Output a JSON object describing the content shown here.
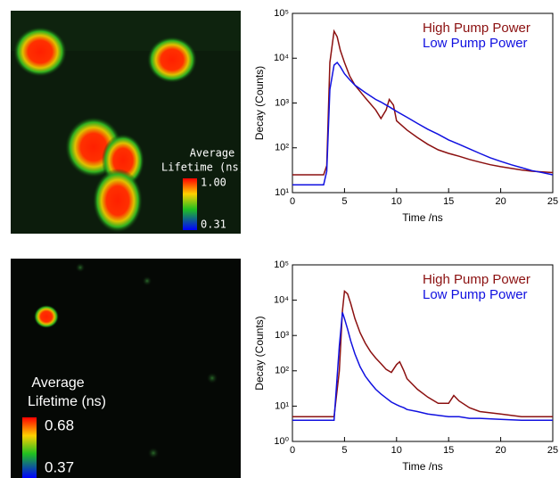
{
  "images": [
    {
      "colorbar_title": [
        "Average",
        "Lifetime (ns)"
      ],
      "colorbar_max": "1.00",
      "colorbar_min": "0.31"
    },
    {
      "colorbar_title": [
        "Average",
        "Lifetime (ns)"
      ],
      "colorbar_max": "0.68",
      "colorbar_min": "0.37"
    }
  ],
  "chart_data": [
    {
      "type": "line",
      "x_label": "Time /ns",
      "y_label": "Decay (Counts)",
      "log_y": true,
      "legend": "upper right",
      "x": [
        0,
        1,
        2,
        3,
        3.3,
        3.6,
        4,
        4.3,
        4.6,
        5,
        5.5,
        6,
        7,
        8,
        8.5,
        9,
        9.3,
        9.7,
        10,
        11,
        12,
        13,
        14,
        15,
        16,
        17,
        18,
        19,
        20,
        21,
        22,
        23,
        24,
        25
      ],
      "series": [
        {
          "name": "High Pump Power",
          "color": "#8b1010",
          "values": [
            25,
            25,
            25,
            25,
            40,
            8000,
            40000,
            30000,
            15000,
            8000,
            4000,
            2500,
            1300,
            700,
            450,
            700,
            1200,
            900,
            400,
            250,
            170,
            120,
            90,
            75,
            65,
            55,
            48,
            42,
            38,
            35,
            32,
            30,
            29,
            28
          ]
        },
        {
          "name": "Low Pump Power",
          "color": "#1010e0",
          "values": [
            15,
            15,
            15,
            15,
            30,
            2000,
            7000,
            8000,
            6500,
            4500,
            3300,
            2500,
            1700,
            1200,
            1050,
            900,
            820,
            720,
            650,
            480,
            350,
            260,
            200,
            150,
            120,
            95,
            75,
            60,
            50,
            42,
            36,
            31,
            28,
            25
          ]
        }
      ],
      "xlim": [
        0,
        25
      ],
      "xticks": [
        0,
        5,
        10,
        15,
        20,
        25
      ],
      "ylim": [
        10,
        100000
      ],
      "yticks": [
        {
          "value": 10,
          "label": "10¹"
        },
        {
          "value": 100,
          "label": "10²"
        },
        {
          "value": 1000,
          "label": "10³"
        },
        {
          "value": 10000,
          "label": "10⁴"
        },
        {
          "value": 100000,
          "label": "10⁵"
        }
      ]
    },
    {
      "type": "line",
      "x_label": "Time /ns",
      "y_label": "Decay (Counts)",
      "log_y": true,
      "legend": "upper right",
      "x": [
        0,
        1,
        2,
        3,
        4,
        4.5,
        4.8,
        5,
        5.3,
        5.6,
        6,
        6.5,
        7,
        7.5,
        8,
        8.5,
        9,
        9.5,
        10,
        10.3,
        10.7,
        11,
        12,
        13,
        14,
        15,
        15.5,
        16,
        17,
        18,
        20,
        22,
        25
      ],
      "series": [
        {
          "name": "High Pump Power",
          "color": "#8b1010",
          "values": [
            5,
            5,
            5,
            5,
            5,
            100,
            5000,
            18000,
            15000,
            8000,
            3000,
            1200,
            600,
            350,
            230,
            160,
            110,
            90,
            150,
            180,
            100,
            60,
            30,
            18,
            12,
            12,
            20,
            14,
            9,
            7,
            6,
            5,
            5
          ]
        },
        {
          "name": "Low Pump Power",
          "color": "#1010e0",
          "values": [
            4,
            4,
            4,
            4,
            4,
            500,
            4500,
            3000,
            1500,
            700,
            300,
            130,
            70,
            45,
            30,
            22,
            17,
            13,
            11,
            10,
            9,
            8,
            7,
            6,
            5.5,
            5,
            5,
            5,
            4.5,
            4.5,
            4.2,
            4,
            4
          ]
        }
      ],
      "xlim": [
        0,
        25
      ],
      "xticks": [
        0,
        5,
        10,
        15,
        20,
        25
      ],
      "ylim": [
        1,
        100000
      ],
      "yticks": [
        {
          "value": 1,
          "label": "10⁰"
        },
        {
          "value": 10,
          "label": "10¹"
        },
        {
          "value": 100,
          "label": "10²"
        },
        {
          "value": 1000,
          "label": "10³"
        },
        {
          "value": 10000,
          "label": "10⁴"
        },
        {
          "value": 100000,
          "label": "10⁵"
        }
      ]
    }
  ]
}
